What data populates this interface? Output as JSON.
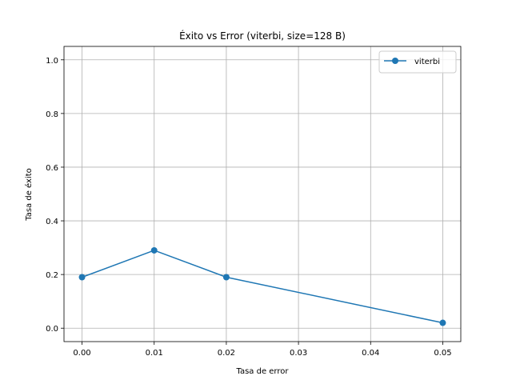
{
  "chart_data": {
    "type": "line",
    "title": "Éxito vs Error (viterbi, size=128 B)",
    "xlabel": "Tasa de error",
    "ylabel": "Tasa de éxito",
    "xlim": [
      -0.0025,
      0.0525
    ],
    "ylim": [
      -0.05,
      1.05
    ],
    "xticks": [
      0.0,
      0.01,
      0.02,
      0.03,
      0.04,
      0.05
    ],
    "xtick_labels": [
      "0.00",
      "0.01",
      "0.02",
      "0.03",
      "0.04",
      "0.05"
    ],
    "yticks": [
      0.0,
      0.2,
      0.4,
      0.6,
      0.8,
      1.0
    ],
    "ytick_labels": [
      "0.0",
      "0.2",
      "0.4",
      "0.6",
      "0.8",
      "1.0"
    ],
    "grid": true,
    "legend_position": "top-right",
    "series": [
      {
        "name": "viterbi",
        "color": "#1f77b4",
        "marker": "circle",
        "x": [
          0.0,
          0.01,
          0.02,
          0.05
        ],
        "y": [
          0.19,
          0.29,
          0.19,
          0.02
        ]
      }
    ]
  }
}
